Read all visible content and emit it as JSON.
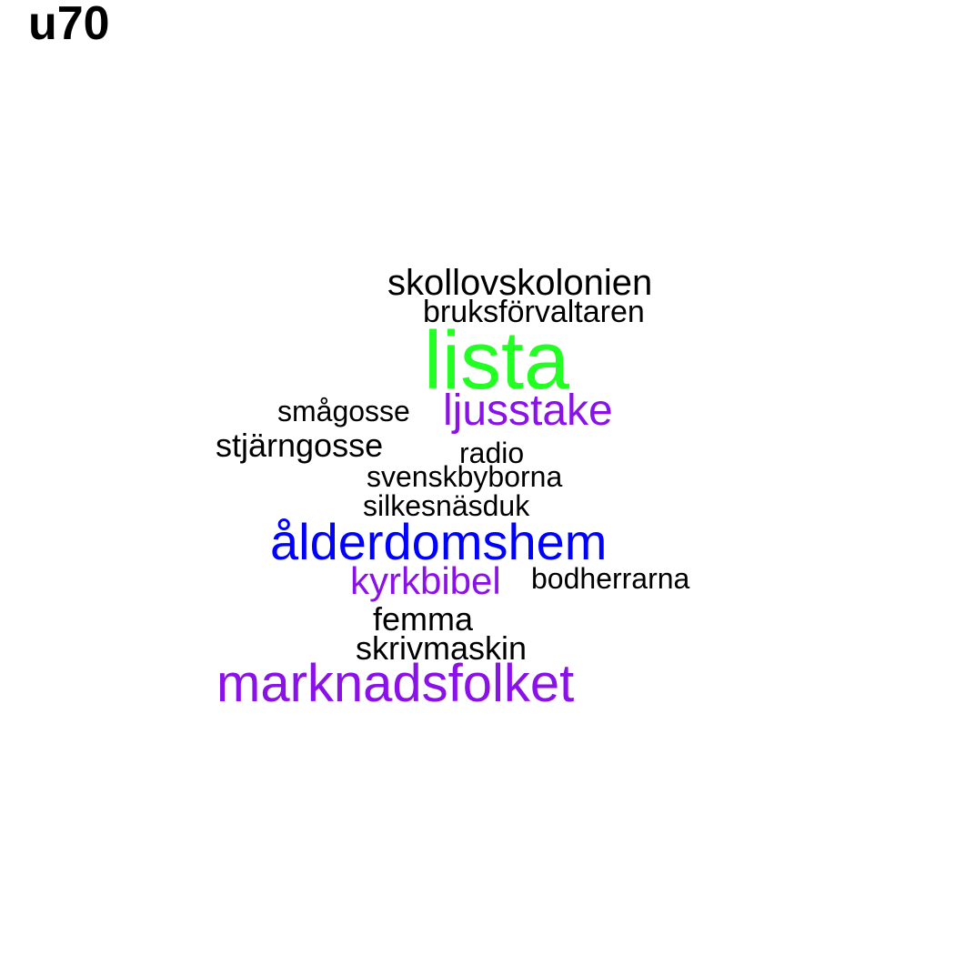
{
  "title": "u70",
  "colors": {
    "black": "#000000",
    "green": "#22ff22",
    "purple": "#8a12e8",
    "blue": "#0000ff"
  },
  "words": [
    {
      "text": "lista",
      "color": "#22ff22"
    },
    {
      "text": "skollovskolonien",
      "color": "#000000"
    },
    {
      "text": "bruksförvaltaren",
      "color": "#000000"
    },
    {
      "text": "smågosse",
      "color": "#000000"
    },
    {
      "text": "ljusstake",
      "color": "#8a12e8"
    },
    {
      "text": "stjärngosse",
      "color": "#000000"
    },
    {
      "text": "radio",
      "color": "#000000"
    },
    {
      "text": "svenskbyborna",
      "color": "#000000"
    },
    {
      "text": "silkesnäsduk",
      "color": "#000000"
    },
    {
      "text": "ålderdomshem",
      "color": "#0000ff"
    },
    {
      "text": "kyrkbibel",
      "color": "#8a12e8"
    },
    {
      "text": "bodherrarna",
      "color": "#000000"
    },
    {
      "text": "femma",
      "color": "#000000"
    },
    {
      "text": "skrivmaskin",
      "color": "#000000"
    },
    {
      "text": "marknadsfolket",
      "color": "#8a12e8"
    }
  ]
}
